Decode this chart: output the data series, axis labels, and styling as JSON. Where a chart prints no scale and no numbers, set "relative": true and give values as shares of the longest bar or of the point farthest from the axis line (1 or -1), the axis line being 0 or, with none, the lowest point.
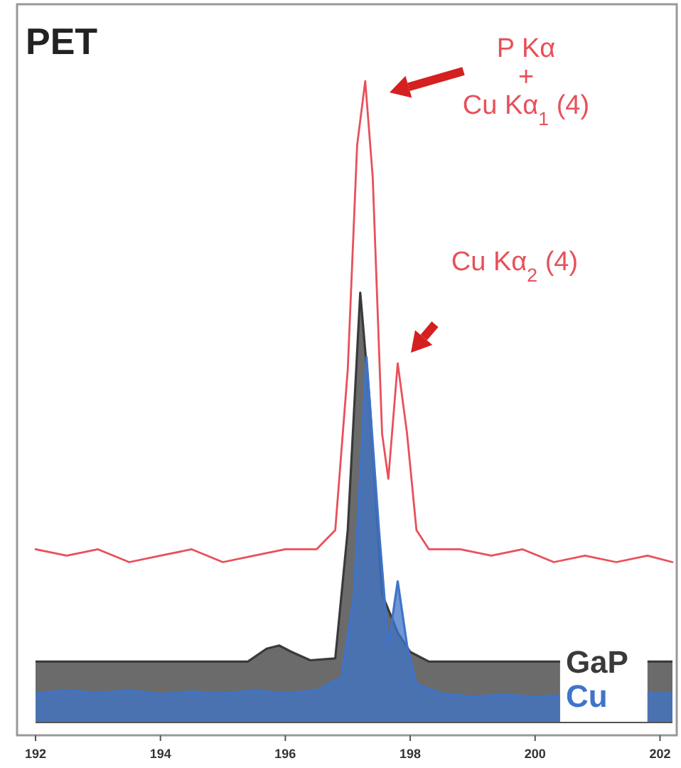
{
  "chart_data": {
    "type": "area",
    "title": "PET",
    "relative": true,
    "xlim": [
      192,
      202.2
    ],
    "xticks": [
      192,
      194,
      196,
      198,
      200,
      202
    ],
    "annotations": [
      "P Kα\n+\nCu Kα$_{1}$ (4)",
      "Cu Kα$_{2}$ (4)"
    ],
    "series": [
      {
        "type": "line",
        "color": "#e8505a",
        "x": [
          192,
          192.5,
          193,
          193.5,
          194,
          194.5,
          195,
          195.5,
          196,
          196.5,
          196.8,
          197,
          197.15,
          197.28,
          197.4,
          197.55,
          197.65,
          197.8,
          197.95,
          198.1,
          198.3,
          198.8,
          199.3,
          199.8,
          200.3,
          200.8,
          201.3,
          201.8,
          202.2
        ],
        "values": [
          0.27,
          0.26,
          0.27,
          0.25,
          0.26,
          0.27,
          0.25,
          0.26,
          0.27,
          0.27,
          0.3,
          0.55,
          0.9,
          1.0,
          0.85,
          0.45,
          0.38,
          0.56,
          0.45,
          0.3,
          0.27,
          0.27,
          0.26,
          0.27,
          0.25,
          0.26,
          0.25,
          0.26,
          0.25
        ]
      },
      {
        "name": "GaP",
        "color": "#3a3a3a",
        "x": [
          192,
          193,
          194,
          195,
          195.4,
          195.7,
          195.9,
          196.1,
          196.4,
          196.8,
          197,
          197.2,
          197.35,
          197.55,
          197.8,
          198,
          198.3,
          199,
          200,
          200.4,
          200.6,
          201.6,
          201.8,
          202.2
        ],
        "values": [
          0.095,
          0.095,
          0.095,
          0.095,
          0.095,
          0.115,
          0.12,
          0.11,
          0.097,
          0.1,
          0.3,
          0.67,
          0.5,
          0.2,
          0.14,
          0.11,
          0.095,
          0.095,
          0.095,
          0.095,
          null,
          null,
          0.095,
          0.095
        ]
      },
      {
        "name": "Cu",
        "color": "#3f74c8",
        "x": [
          192,
          192.5,
          193,
          193.5,
          194,
          194.5,
          195,
          195.5,
          196,
          196.5,
          196.9,
          197.1,
          197.3,
          197.5,
          197.65,
          197.8,
          197.95,
          198.1,
          198.5,
          199,
          199.5,
          200,
          200.4,
          200.6,
          201.6,
          201.8,
          202.2
        ],
        "values": [
          0.045,
          0.05,
          0.046,
          0.05,
          0.044,
          0.048,
          0.045,
          0.05,
          0.045,
          0.05,
          0.07,
          0.2,
          0.57,
          0.3,
          0.12,
          0.22,
          0.12,
          0.06,
          0.045,
          0.04,
          0.043,
          0.04,
          0.042,
          null,
          null,
          0.045,
          0.045
        ]
      }
    ]
  }
}
